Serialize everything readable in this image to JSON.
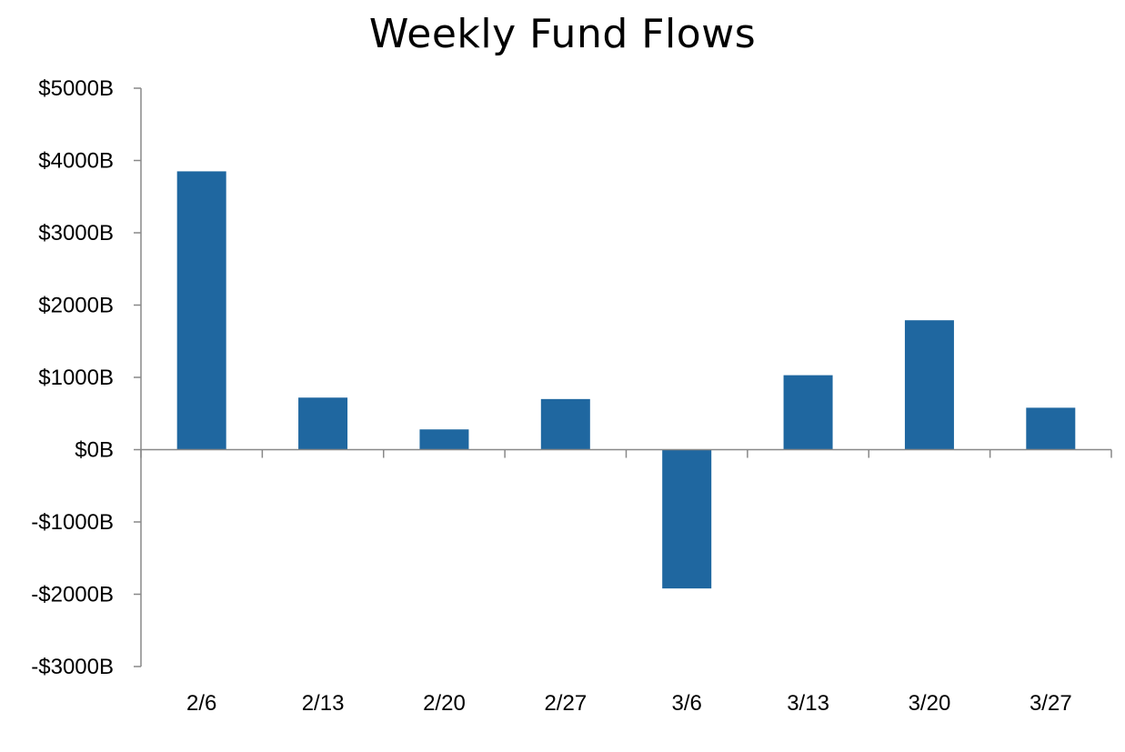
{
  "chart_data": {
    "type": "bar",
    "title": "Weekly Fund Flows",
    "xlabel": "",
    "ylabel": "",
    "categories": [
      "2/6",
      "2/13",
      "2/20",
      "2/27",
      "3/6",
      "3/13",
      "3/20",
      "3/27"
    ],
    "values": [
      3850,
      720,
      280,
      700,
      -1920,
      1030,
      1790,
      580
    ],
    "ylim": [
      -3000,
      5000
    ],
    "yticks": [
      5000,
      4000,
      3000,
      2000,
      1000,
      0,
      -1000,
      -2000,
      -3000
    ],
    "ytick_labels": [
      "$5000B",
      "$4000B",
      "$3000B",
      "$2000B",
      "$1000B",
      "$0B",
      "-$1000B",
      "-$2000B",
      "-$3000B"
    ],
    "grid": false,
    "legend": "none",
    "bar_color": "#1F67A0",
    "axis_color": "#888888"
  }
}
